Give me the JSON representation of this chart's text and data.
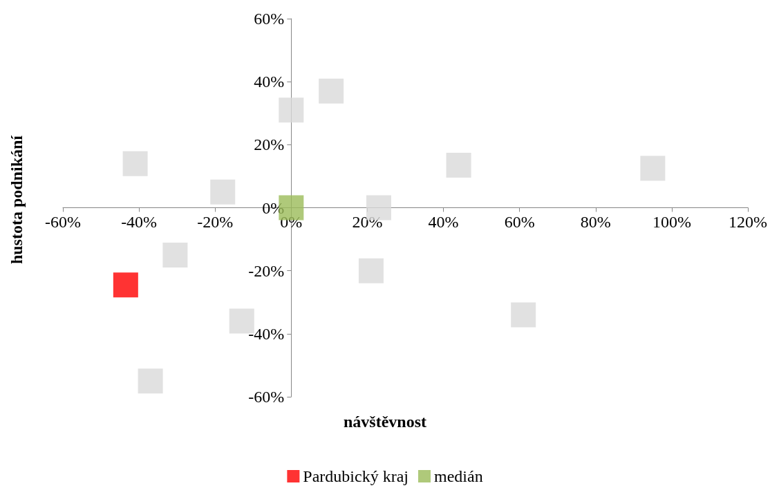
{
  "chart_data": {
    "type": "scatter",
    "xlabel": "návštěvnost",
    "ylabel": "hustota podnikání",
    "marker": "square",
    "grid": false,
    "legend": "bottom",
    "xlim": [
      -60,
      120
    ],
    "ylim": [
      -60,
      60
    ],
    "xticks": [
      {
        "value": -60,
        "label": "-60%"
      },
      {
        "value": -40,
        "label": "-40%"
      },
      {
        "value": -20,
        "label": "-20%"
      },
      {
        "value": 0,
        "label": "0%"
      },
      {
        "value": 20,
        "label": "20%"
      },
      {
        "value": 40,
        "label": "40%"
      },
      {
        "value": 60,
        "label": "60%"
      },
      {
        "value": 80,
        "label": "80%"
      },
      {
        "value": 100,
        "label": "100%"
      },
      {
        "value": 120,
        "label": "120%"
      }
    ],
    "yticks": [
      {
        "value": -60,
        "label": "-60%"
      },
      {
        "value": -40,
        "label": "-40%"
      },
      {
        "value": -20,
        "label": "-20%"
      },
      {
        "value": 0,
        "label": "0%"
      },
      {
        "value": 20,
        "label": "20%"
      },
      {
        "value": 40,
        "label": "40%"
      },
      {
        "value": 60,
        "label": "60%"
      }
    ],
    "series": [
      {
        "color": "#d9d9d9",
        "x": [
          -41,
          0,
          10.5,
          -18,
          23,
          44,
          95,
          -30.5,
          21,
          -13,
          -37,
          61
        ],
        "values": [
          14,
          31,
          37,
          5,
          0,
          13.5,
          12.5,
          -15,
          -20,
          -36,
          -55,
          -34
        ]
      },
      {
        "name": "Pardubický kraj",
        "color": "#ff0000",
        "x": [
          -43.5
        ],
        "values": [
          -24.5
        ]
      },
      {
        "name": "medián",
        "color": "#9bbb59",
        "x": [
          0
        ],
        "values": [
          0
        ]
      }
    ]
  }
}
